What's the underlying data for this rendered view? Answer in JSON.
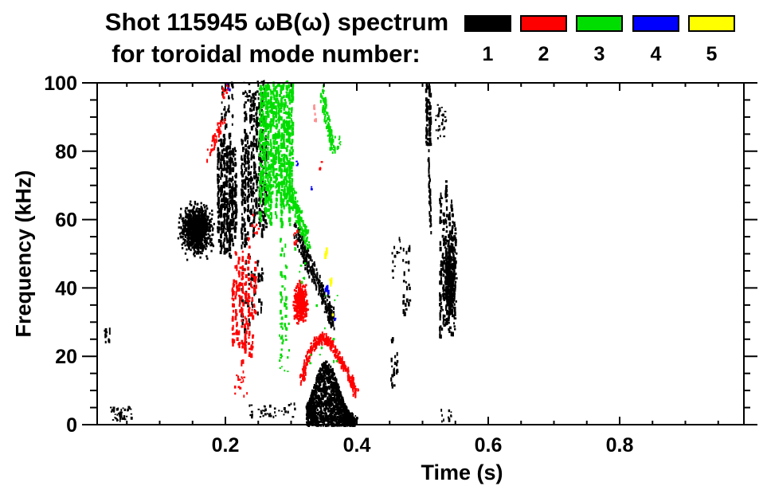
{
  "title": {
    "line1": "Shot 115945 ωB(ω) spectrum",
    "line2": "for toroidal mode number:"
  },
  "legend": {
    "items": [
      {
        "label": "1",
        "color": "#000000"
      },
      {
        "label": "2",
        "color": "#ff0000"
      },
      {
        "label": "3",
        "color": "#00dd00"
      },
      {
        "label": "4",
        "color": "#0000ff"
      },
      {
        "label": "5",
        "color": "#ffff00"
      }
    ]
  },
  "chart_data": {
    "type": "scatter",
    "title": "Shot 115945 ωB(ω) spectrum for toroidal mode number: 1 2 3 4 5",
    "xlabel": "Time (s)",
    "ylabel": "Frequency (kHz)",
    "xlim": [
      0,
      1.0
    ],
    "ylim": [
      0,
      100
    ],
    "x_major_ticks": [
      0.2,
      0.4,
      0.6,
      0.8
    ],
    "x_major_tick_labels": [
      "0.2",
      "0.4",
      "0.6",
      "0.8"
    ],
    "x_minor_step": 0.05,
    "y_major_ticks": [
      0,
      20,
      40,
      60,
      80,
      100
    ],
    "y_major_tick_labels": [
      "0",
      "20",
      "40",
      "60",
      "80",
      "100"
    ],
    "y_minor_step": 5,
    "grid": false,
    "legend_position": "top-right",
    "series": [
      {
        "name": "toroidal mode n=1",
        "color": "#000000",
        "clusters": [
          {
            "type": "vstreaks",
            "t": [
              0.014,
              0.024
            ],
            "f": [
              22,
              30
            ],
            "cols": 2,
            "density": 0.5,
            "topJ": 0.3,
            "botJ": 0.3
          },
          {
            "type": "dots",
            "t": [
              0.024,
              0.056
            ],
            "f": [
              1.5,
              5.5
            ],
            "n": 45
          },
          {
            "type": "blob",
            "c": [
              0.155,
              57.5
            ],
            "rt": 0.021,
            "rf": 6.5,
            "n": 950
          },
          {
            "type": "vstreaks",
            "t": [
              0.186,
              0.216
            ],
            "f": [
              47,
              87
            ],
            "cols": 7,
            "density": 0.85,
            "topJ": 0.15,
            "botJ": 0.2
          },
          {
            "type": "vstreaks",
            "t": [
              0.19,
              0.212
            ],
            "f": [
              87,
              101
            ],
            "cols": 4,
            "density": 0.3,
            "topJ": 0.1,
            "botJ": 0.3
          },
          {
            "type": "vstreaks",
            "t": [
              0.222,
              0.262
            ],
            "f": [
              52,
              100
            ],
            "cols": 9,
            "density": 0.6,
            "topJ": 0.35,
            "botJ": 0.3
          },
          {
            "type": "vstreaks",
            "t": [
              0.222,
              0.256
            ],
            "f": [
              22,
              52
            ],
            "cols": 7,
            "density": 0.22,
            "topJ": 0.2,
            "botJ": 0.5
          },
          {
            "type": "dots",
            "t": [
              0.225,
              0.26
            ],
            "f": [
              95,
              101
            ],
            "n": 35
          },
          {
            "type": "path",
            "pts": [
              [
                0.306,
                58
              ],
              [
                0.318,
                51
              ],
              [
                0.33,
                46
              ],
              [
                0.344,
                40
              ],
              [
                0.356,
                34
              ],
              [
                0.362,
                31
              ]
            ],
            "n": 300,
            "jt": 0.004,
            "jf": 2.6
          },
          {
            "type": "hump",
            "t": [
              0.322,
              0.396
            ],
            "peakT": 0.352,
            "peakF": 18,
            "sigma": 0.026,
            "n": 1500
          },
          {
            "type": "dots",
            "t": [
              0.235,
              0.305
            ],
            "f": [
              2.5,
              6.5
            ],
            "n": 40
          },
          {
            "type": "dots",
            "t": [
              0.388,
              0.402
            ],
            "f": [
              1,
              4
            ],
            "n": 8
          },
          {
            "type": "vstreaks",
            "t": [
              0.45,
              0.462
            ],
            "f": [
              9,
              33
            ],
            "cols": 3,
            "density": 0.22,
            "topJ": 0.3,
            "botJ": 0.3
          },
          {
            "type": "dots",
            "t": [
              0.452,
              0.466
            ],
            "f": [
              43,
              55
            ],
            "n": 14
          },
          {
            "type": "vstreaks",
            "t": [
              0.468,
              0.48
            ],
            "f": [
              30,
              57
            ],
            "cols": 3,
            "density": 0.2,
            "topJ": 0.2,
            "botJ": 0.2
          },
          {
            "type": "vstreaks",
            "t": [
              0.503,
              0.512
            ],
            "f": [
              80,
              101
            ],
            "cols": 2,
            "density": 0.9,
            "topJ": 0.05,
            "botJ": 0.15
          },
          {
            "type": "path",
            "pts": [
              [
                0.508,
                80
              ],
              [
                0.51,
                68
              ],
              [
                0.511,
                57
              ]
            ],
            "n": 45,
            "jt": 0.0012,
            "jf": 1.2
          },
          {
            "type": "dots",
            "t": [
              0.518,
              0.535
            ],
            "f": [
              84,
              94
            ],
            "n": 26
          },
          {
            "type": "vstreaks",
            "t": [
              0.524,
              0.55
            ],
            "f": [
              23,
              72
            ],
            "cols": 6,
            "density": 0.5,
            "topJ": 0.25,
            "botJ": 0.25
          },
          {
            "type": "blob",
            "c": [
              0.54,
              42
            ],
            "rt": 0.0075,
            "rf": 11,
            "n": 420
          },
          {
            "type": "dots",
            "t": [
              0.527,
              0.543
            ],
            "f": [
              1,
              5
            ],
            "n": 12
          }
        ]
      },
      {
        "name": "toroidal mode n=2",
        "color": "#ff0000",
        "clusters": [
          {
            "type": "path",
            "pts": [
              [
                0.172,
                79
              ],
              [
                0.183,
                84
              ],
              [
                0.195,
                89
              ]
            ],
            "n": 45,
            "jt": 0.0035,
            "jf": 1.6
          },
          {
            "type": "dots",
            "t": [
              0.195,
              0.206
            ],
            "f": [
              96,
              100
            ],
            "n": 14
          },
          {
            "type": "vstreaks",
            "t": [
              0.208,
              0.246
            ],
            "f": [
              18,
              55
            ],
            "cols": 8,
            "density": 0.42,
            "topJ": 0.3,
            "botJ": 0.35
          },
          {
            "type": "dots",
            "t": [
              0.213,
              0.232
            ],
            "f": [
              7,
              16
            ],
            "n": 16
          },
          {
            "type": "dots",
            "t": [
              0.238,
              0.25
            ],
            "f": [
              56,
              62
            ],
            "n": 8
          },
          {
            "type": "dots",
            "t": [
              0.303,
              0.309
            ],
            "f": [
              53,
              58
            ],
            "n": 9
          },
          {
            "type": "blob",
            "c": [
              0.313,
              36
            ],
            "rt": 0.0085,
            "rf": 4.8,
            "n": 380
          },
          {
            "type": "path",
            "pts": [
              [
                0.314,
                13
              ],
              [
                0.324,
                20
              ],
              [
                0.336,
                24.5
              ],
              [
                0.348,
                26
              ],
              [
                0.362,
                23.5
              ],
              [
                0.376,
                19
              ],
              [
                0.39,
                13.5
              ],
              [
                0.399,
                9
              ]
            ],
            "n": 300,
            "jt": 0.003,
            "jf": 1.3
          },
          {
            "type": "vstreaks",
            "t": [
              0.332,
              0.338
            ],
            "f": [
              88,
              96
            ],
            "cols": 1,
            "density": 0.5,
            "topJ": 0.1,
            "botJ": 0.1,
            "color": "#ff9191"
          },
          {
            "type": "dots",
            "t": [
              0.34,
              0.346
            ],
            "f": [
              75,
              78
            ],
            "n": 4
          }
        ]
      },
      {
        "name": "toroidal mode n=3",
        "color": "#00dd00",
        "clusters": [
          {
            "type": "vstreaks",
            "t": [
              0.25,
              0.302
            ],
            "f": [
              58,
              101
            ],
            "cols": 13,
            "density": 0.8,
            "topJ": 0.04,
            "botJ": 0.3
          },
          {
            "type": "path",
            "pts": [
              [
                0.297,
                70
              ],
              [
                0.306,
                64
              ],
              [
                0.316,
                58
              ],
              [
                0.326,
                54.5
              ]
            ],
            "n": 140,
            "jt": 0.003,
            "jf": 3
          },
          {
            "type": "vstreaks",
            "t": [
              0.281,
              0.293
            ],
            "f": [
              22,
              55
            ],
            "cols": 2,
            "density": 0.3,
            "topJ": 0.05,
            "botJ": 0.1
          },
          {
            "type": "path",
            "pts": [
              [
                0.346,
                97
              ],
              [
                0.352,
                91
              ],
              [
                0.358,
                85
              ],
              [
                0.364,
                82
              ]
            ],
            "n": 110,
            "jt": 0.0025,
            "jf": 3
          },
          {
            "type": "dots",
            "t": [
              0.368,
              0.374
            ],
            "f": [
              81,
              85
            ],
            "n": 7
          },
          {
            "type": "dots",
            "t": [
              0.28,
              0.296
            ],
            "f": [
              15,
              30
            ],
            "n": 18
          },
          {
            "type": "dots",
            "t": [
              0.325,
              0.375
            ],
            "f": [
              18,
              38
            ],
            "n": 12
          },
          {
            "type": "dots",
            "t": [
              0.302,
              0.32
            ],
            "f": [
              42,
              52
            ],
            "n": 8
          }
        ]
      },
      {
        "name": "toroidal mode n=4",
        "color": "#0000ff",
        "clusters": [
          {
            "type": "dots",
            "t": [
              0.2,
              0.208
            ],
            "f": [
              98,
              100
            ],
            "n": 3
          },
          {
            "type": "dots",
            "t": [
              0.305,
              0.311
            ],
            "f": [
              76,
              78
            ],
            "n": 3
          },
          {
            "type": "dots",
            "t": [
              0.329,
              0.335
            ],
            "f": [
              69,
              71
            ],
            "n": 3
          },
          {
            "type": "dash",
            "t": [
              0.35,
              0.355
            ],
            "f": [
              39,
              43
            ],
            "n": 5
          },
          {
            "type": "dots",
            "t": [
              0.363,
              0.368
            ],
            "f": [
              31,
              33
            ],
            "n": 3
          }
        ]
      },
      {
        "name": "toroidal mode n=5",
        "color": "#ffff00",
        "clusters": [
          {
            "type": "dash",
            "t": [
              0.35,
              0.354
            ],
            "f": [
              50,
              52
            ],
            "n": 4
          },
          {
            "type": "dash",
            "t": [
              0.358,
              0.362
            ],
            "f": [
              41,
              44
            ],
            "n": 4
          },
          {
            "type": "dots",
            "t": [
              0.361,
              0.365
            ],
            "f": [
              31,
              33
            ],
            "n": 3
          }
        ]
      }
    ]
  }
}
